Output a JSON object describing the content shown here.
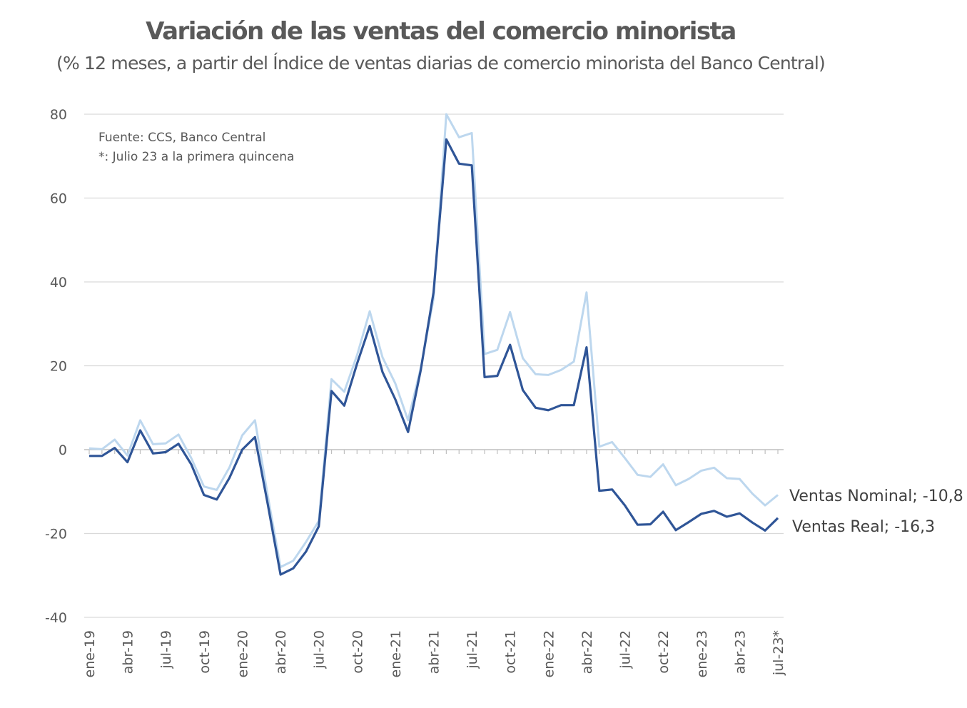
{
  "title": "Variación de las ventas del comercio minorista",
  "subtitle": "(% 12 meses, a partir del Índice de ventas diarias de comercio minorista del Banco Central)",
  "notes": [
    "Fuente: CCS, Banco Central",
    "*: Julio 23 a la primera quincena"
  ],
  "colors": {
    "nominal": "#bdd7ee",
    "real": "#2f5597",
    "grid": "#d9d9d9",
    "axis": "#bfbfbf"
  },
  "chart_data": {
    "type": "line",
    "title": "Variación de las ventas del comercio minorista",
    "subtitle": "(% 12 meses, a partir del Índice de ventas diarias de comercio minorista del Banco Central)",
    "ylim": [
      -40,
      80
    ],
    "yticks": [
      -40,
      -20,
      0,
      20,
      40,
      60,
      80
    ],
    "grid": true,
    "x": [
      "ene-19",
      "feb-19",
      "mar-19",
      "abr-19",
      "may-19",
      "jun-19",
      "jul-19",
      "ago-19",
      "sep-19",
      "oct-19",
      "nov-19",
      "dic-19",
      "ene-20",
      "feb-20",
      "mar-20",
      "abr-20",
      "may-20",
      "jun-20",
      "jul-20",
      "ago-20",
      "sep-20",
      "oct-20",
      "nov-20",
      "dic-20",
      "ene-21",
      "feb-21",
      "mar-21",
      "abr-21",
      "may-21",
      "jun-21",
      "jul-21",
      "ago-21",
      "sep-21",
      "oct-21",
      "nov-21",
      "dic-21",
      "ene-22",
      "feb-22",
      "mar-22",
      "abr-22",
      "may-22",
      "jun-22",
      "jul-22",
      "ago-22",
      "sep-22",
      "oct-22",
      "nov-22",
      "dic-22",
      "ene-23",
      "feb-23",
      "mar-23",
      "abr-23",
      "may-23",
      "jun-23",
      "jul-23*"
    ],
    "xtick_labels": [
      "ene-19",
      "abr-19",
      "jul-19",
      "oct-19",
      "ene-20",
      "abr-20",
      "jul-20",
      "oct-20",
      "ene-21",
      "abr-21",
      "jul-21",
      "oct-21",
      "ene-22",
      "abr-22",
      "jul-22",
      "oct-22",
      "ene-23",
      "abr-23",
      "jul-23*"
    ],
    "series": [
      {
        "name": "Ventas Nominal",
        "end_label": "Ventas Nominal; -10,8",
        "color": "#bdd7ee",
        "values": [
          0.3,
          0.1,
          2.4,
          -1.4,
          7.0,
          1.3,
          1.5,
          3.6,
          -2.0,
          -8.8,
          -9.6,
          -4.2,
          3.4,
          7.0,
          -11.0,
          -28.0,
          -26.5,
          -22.0,
          -17.0,
          16.8,
          13.8,
          22.5,
          33.0,
          22.0,
          15.8,
          7.0,
          19.5,
          36.0,
          80.0,
          74.5,
          75.5,
          22.8,
          23.8,
          32.8,
          21.8,
          18.0,
          17.8,
          19.0,
          21.0,
          37.5,
          0.7,
          1.8,
          -2.0,
          -6.0,
          -6.5,
          -3.5,
          -8.5,
          -7.0,
          -5.0,
          -4.3,
          -6.8,
          -7.0,
          -10.5,
          -13.3,
          -10.8
        ]
      },
      {
        "name": "Ventas Real",
        "end_label": "Ventas Real; -16,3",
        "color": "#2f5597",
        "values": [
          -1.5,
          -1.5,
          0.4,
          -3.0,
          4.6,
          -0.9,
          -0.6,
          1.4,
          -3.5,
          -10.8,
          -11.9,
          -6.7,
          0.0,
          3.0,
          -13.0,
          -29.8,
          -28.3,
          -24.3,
          -18.3,
          14.0,
          10.5,
          20.5,
          29.5,
          18.5,
          12.0,
          4.2,
          19.0,
          37.5,
          74.0,
          68.2,
          67.8,
          17.3,
          17.6,
          25.0,
          14.2,
          10.0,
          9.4,
          10.6,
          10.6,
          24.4,
          -9.8,
          -9.5,
          -13.3,
          -17.9,
          -17.8,
          -14.8,
          -19.2,
          -17.3,
          -15.3,
          -14.6,
          -16.0,
          -15.2,
          -17.4,
          -19.3,
          -16.3
        ]
      }
    ]
  }
}
